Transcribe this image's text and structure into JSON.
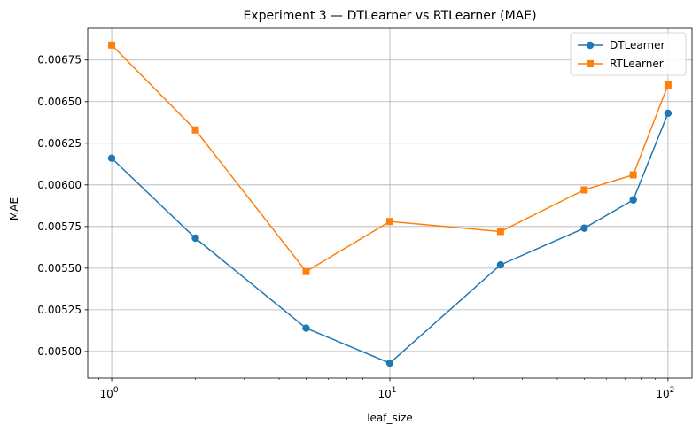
{
  "chart_data": {
    "type": "line",
    "title": "Experiment 3 — DTLearner vs RTLearner (MAE)",
    "xlabel": "leaf_size",
    "ylabel": "MAE",
    "xscale": "log",
    "xlim": [
      0.82,
      122
    ],
    "ylim": [
      0.00484,
      0.00694
    ],
    "grid": true,
    "legend_position": "top-right",
    "x": [
      1,
      2,
      5,
      10,
      25,
      50,
      75,
      100
    ],
    "x_ticks": [
      1,
      10,
      100
    ],
    "x_tick_labels": [
      {
        "base": "10",
        "exp": "0"
      },
      {
        "base": "10",
        "exp": "1"
      },
      {
        "base": "10",
        "exp": "2"
      }
    ],
    "y_ticks": [
      0.005,
      0.00525,
      0.0055,
      0.00575,
      0.006,
      0.00625,
      0.0065,
      0.00675
    ],
    "y_tick_labels": [
      "0.00500",
      "0.00525",
      "0.00550",
      "0.00575",
      "0.00600",
      "0.00625",
      "0.00650",
      "0.00675"
    ],
    "series": [
      {
        "name": "DTLearner",
        "color": "#1f77b4",
        "marker": "circle",
        "values": [
          0.00616,
          0.00568,
          0.00514,
          0.00493,
          0.00552,
          0.00574,
          0.00591,
          0.00643
        ]
      },
      {
        "name": "RTLearner",
        "color": "#ff7f0e",
        "marker": "square",
        "values": [
          0.00684,
          0.00633,
          0.00548,
          0.00578,
          0.00572,
          0.00597,
          0.00606,
          0.0066
        ]
      }
    ]
  }
}
